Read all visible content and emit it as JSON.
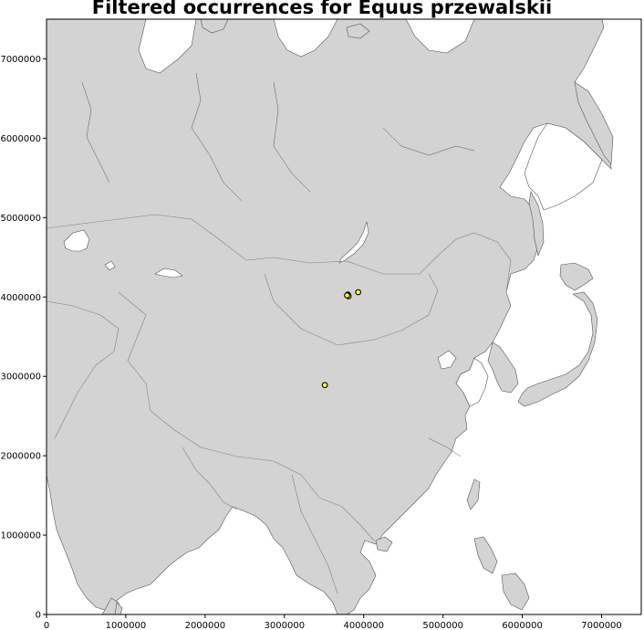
{
  "title": "Filtered occurrences for Equus przewalskii",
  "colors": {
    "land": "#d3d3d3",
    "coast": "#555555",
    "border": "#808080",
    "ocean": "#ffffff",
    "point_fill": "#ffff33",
    "point_edge": "#000000"
  },
  "chart_data": {
    "type": "scatter",
    "title": "Filtered occurrences for Equus przewalskii",
    "xlim": [
      0,
      7500000
    ],
    "ylim": [
      0,
      7500000
    ],
    "xticks": [
      0,
      1000000,
      2000000,
      3000000,
      4000000,
      5000000,
      6000000,
      7000000
    ],
    "yticks": [
      0,
      1000000,
      2000000,
      3000000,
      4000000,
      5000000,
      6000000,
      7000000
    ],
    "xtick_labels": [
      "0",
      "1000000",
      "2000000",
      "3000000",
      "4000000",
      "5000000",
      "6000000",
      "7000000"
    ],
    "ytick_labels": [
      "0",
      "1000000",
      "2000000",
      "3000000",
      "4000000",
      "5000000",
      "6000000",
      "7000000"
    ],
    "grid": false,
    "points": [
      {
        "x": 3800000,
        "y": 4030000
      },
      {
        "x": 3810000,
        "y": 4010000
      },
      {
        "x": 3790000,
        "y": 4020000
      },
      {
        "x": 3930000,
        "y": 4060000
      },
      {
        "x": 3510000,
        "y": 2890000
      }
    ]
  }
}
